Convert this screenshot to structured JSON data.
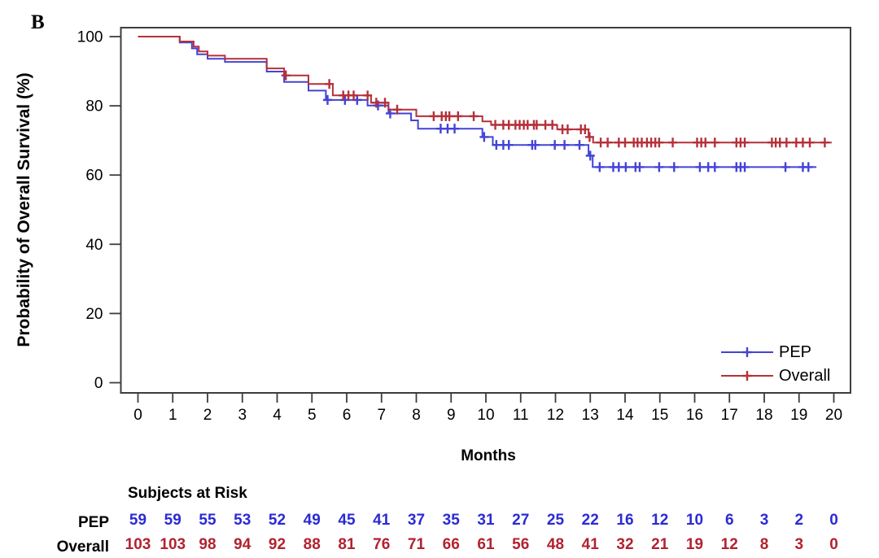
{
  "figure": {
    "panel_label": "B",
    "background": "#ffffff"
  },
  "chart_data": {
    "type": "line",
    "subtype": "kaplan-meier-step",
    "title": "",
    "xlabel": "Months",
    "ylabel": "Probability of Overall Survival (%)",
    "xlim": [
      0,
      20
    ],
    "ylim": [
      0,
      100
    ],
    "xticks": [
      0,
      1,
      2,
      3,
      4,
      5,
      6,
      7,
      8,
      9,
      10,
      11,
      12,
      13,
      14,
      15,
      16,
      17,
      18,
      19,
      20
    ],
    "yticks": [
      0,
      20,
      40,
      60,
      80,
      100
    ],
    "grid": false,
    "colors": {
      "pep_line": "#4343d6",
      "overall_line": "#b5303a",
      "pep_text": "#2b2bd4",
      "overall_text": "#b22230",
      "axis": "#3d3d3d",
      "tick_text": "#000000"
    },
    "legend": {
      "position": "bottom-right-inside",
      "entries": [
        {
          "label": "PEP",
          "color": "#4343d6",
          "marker": "plus"
        },
        {
          "label": "Overall",
          "color": "#b5303a",
          "marker": "plus"
        }
      ]
    },
    "series": [
      {
        "name": "PEP",
        "color": "#4343d6",
        "points": [
          [
            0,
            100
          ],
          [
            1.2,
            98.3
          ],
          [
            1.55,
            96.6
          ],
          [
            1.7,
            94.9
          ],
          [
            2.0,
            93.6
          ],
          [
            2.5,
            92.7
          ],
          [
            3.7,
            89.9
          ],
          [
            4.2,
            86.9
          ],
          [
            4.9,
            84.4
          ],
          [
            5.4,
            81.7
          ],
          [
            6.6,
            80.1
          ],
          [
            7.2,
            77.8
          ],
          [
            7.85,
            75.8
          ],
          [
            8.05,
            73.4
          ],
          [
            9.9,
            71.0
          ],
          [
            10.2,
            68.7
          ],
          [
            12.95,
            65.6
          ],
          [
            13.07,
            62.3
          ]
        ],
        "end_month": 19.5,
        "censor_months": [
          5.45,
          5.95,
          6.3,
          6.9,
          7.25,
          8.7,
          8.9,
          9.1,
          9.95,
          10.3,
          10.5,
          10.66,
          11.33,
          11.42,
          11.98,
          12.26,
          12.69,
          13.0,
          13.27,
          13.66,
          13.82,
          14.02,
          14.3,
          14.42,
          14.98,
          15.41,
          16.15,
          16.39,
          16.58,
          17.2,
          17.32,
          17.44,
          18.61,
          19.11,
          19.27
        ]
      },
      {
        "name": "Overall",
        "color": "#b5303a",
        "points": [
          [
            0,
            100
          ],
          [
            1.2,
            98.6
          ],
          [
            1.6,
            97.1
          ],
          [
            1.75,
            95.7
          ],
          [
            2.0,
            94.5
          ],
          [
            2.5,
            93.6
          ],
          [
            3.7,
            90.8
          ],
          [
            4.2,
            88.8
          ],
          [
            4.9,
            86.3
          ],
          [
            5.6,
            83.0
          ],
          [
            6.7,
            80.9
          ],
          [
            7.2,
            78.9
          ],
          [
            8.0,
            77.0
          ],
          [
            9.9,
            75.5
          ],
          [
            10.15,
            74.5
          ],
          [
            12.05,
            73.2
          ],
          [
            12.95,
            71.0
          ],
          [
            13.08,
            69.4
          ]
        ],
        "end_month": 19.94,
        "censor_months": [
          4.25,
          5.5,
          5.9,
          6.05,
          6.2,
          6.6,
          6.85,
          7.1,
          7.45,
          8.5,
          8.73,
          8.85,
          8.95,
          9.2,
          9.65,
          10.27,
          10.5,
          10.66,
          10.85,
          10.97,
          11.09,
          11.2,
          11.38,
          11.46,
          11.71,
          11.91,
          12.2,
          12.35,
          12.73,
          12.85,
          12.98,
          13.3,
          13.5,
          13.82,
          14.0,
          14.25,
          14.36,
          14.48,
          14.63,
          14.75,
          14.87,
          14.98,
          15.37,
          16.07,
          16.19,
          16.31,
          16.58,
          17.2,
          17.32,
          17.44,
          18.22,
          18.33,
          18.45,
          18.64,
          18.92,
          19.11,
          19.31,
          19.74
        ]
      }
    ],
    "risk_table": {
      "header": "Subjects at Risk",
      "months": [
        0,
        1,
        2,
        3,
        4,
        5,
        6,
        7,
        8,
        9,
        10,
        11,
        12,
        13,
        14,
        15,
        16,
        17,
        18,
        19,
        20
      ],
      "rows": [
        {
          "label": "PEP",
          "color": "#2b2bd4",
          "values": [
            59,
            59,
            55,
            53,
            52,
            49,
            45,
            41,
            37,
            35,
            31,
            27,
            25,
            22,
            16,
            12,
            10,
            6,
            3,
            2,
            0
          ]
        },
        {
          "label": "Overall",
          "color": "#b22230",
          "values": [
            103,
            103,
            98,
            94,
            92,
            88,
            81,
            76,
            71,
            66,
            61,
            56,
            48,
            41,
            32,
            21,
            19,
            12,
            8,
            3,
            0
          ]
        }
      ]
    }
  }
}
